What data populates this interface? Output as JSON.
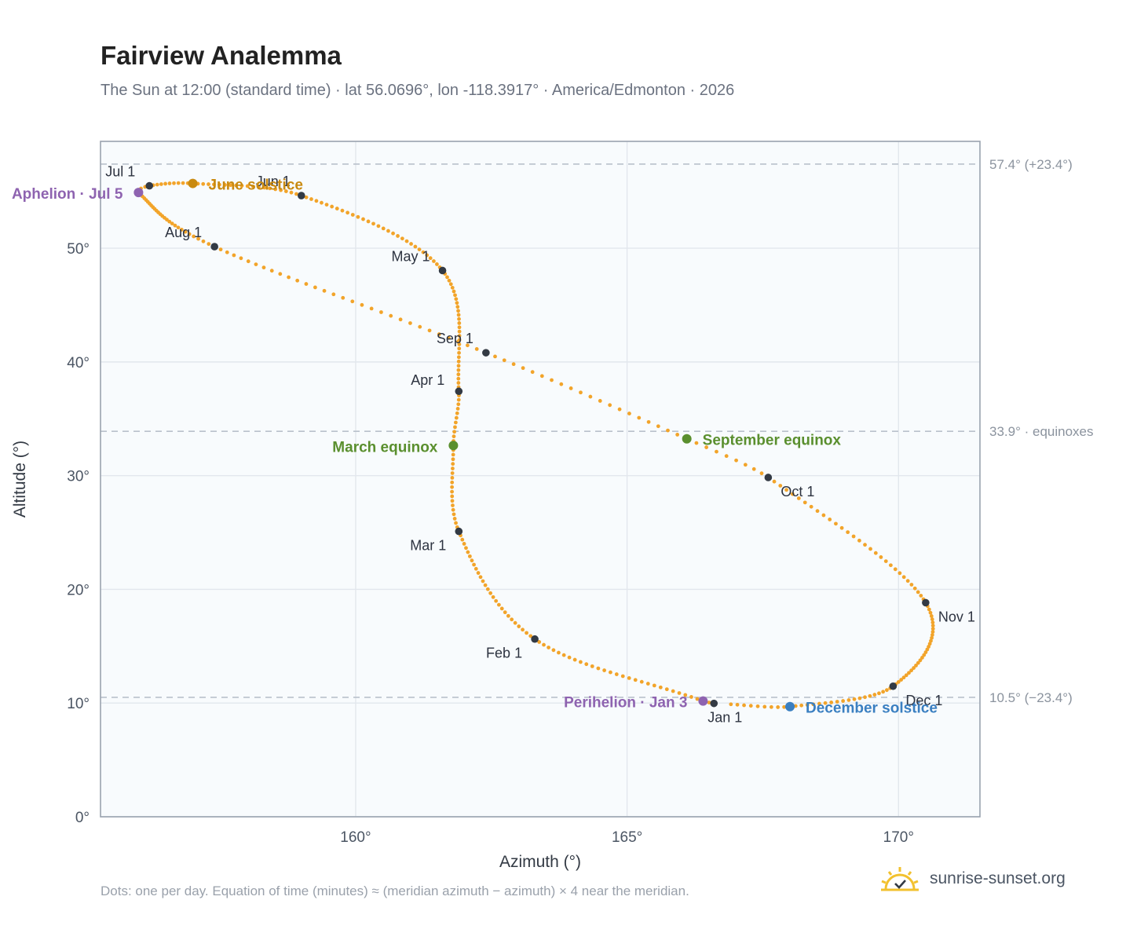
{
  "title": "Fairview Analemma",
  "subtitle": "The Sun at 12:00 (standard time) · lat 56.0696°, lon -118.3917° · America/Edmonton · 2026",
  "footnote": "Dots: one per day. Equation of time (minutes) ≈ (meridian azimuth − azimuth) × 4 near the meridian.",
  "brand": {
    "name": "sunrise-sunset.org",
    "icon": "sun-checkmark-logo-icon"
  },
  "colors": {
    "curve": "#f2a42a",
    "month_marker": "#333a44",
    "solstice_june": "#c98a10",
    "solstice_december": "#3a7fc1",
    "equinox": "#5a8f2e",
    "apsis": "#8e63b0",
    "reference_line": "#b9c1cc",
    "plot_background": "#f8fbfd"
  },
  "chart_data": {
    "type": "scatter",
    "xlabel": "Azimuth (°)",
    "ylabel": "Altitude (°)",
    "xlim": [
      155.3,
      171.5
    ],
    "ylim": [
      0,
      59.4
    ],
    "x_ticks": [
      160,
      165,
      170
    ],
    "x_tick_labels": [
      "160°",
      "165°",
      "170°"
    ],
    "y_ticks": [
      0,
      10,
      20,
      30,
      40,
      50
    ],
    "y_tick_labels": [
      "0°",
      "10°",
      "20°",
      "30°",
      "40°",
      "50°"
    ],
    "grid": true,
    "series": [
      {
        "name": "Daily sun position",
        "marker": "dot-per-day",
        "anchors": [
          {
            "date": "2026-01-01",
            "azimuth": 166.6,
            "altitude": 9.97
          },
          {
            "date": "2026-01-03",
            "azimuth": 166.4,
            "altitude": 10.18
          },
          {
            "date": "2026-02-01",
            "azimuth": 163.3,
            "altitude": 15.63
          },
          {
            "date": "2026-03-01",
            "azimuth": 161.9,
            "altitude": 25.1
          },
          {
            "date": "2026-03-20",
            "azimuth": 161.8,
            "altitude": 32.65
          },
          {
            "date": "2026-04-01",
            "azimuth": 161.9,
            "altitude": 37.42
          },
          {
            "date": "2026-05-01",
            "azimuth": 161.6,
            "altitude": 48.04
          },
          {
            "date": "2026-06-01",
            "azimuth": 159.0,
            "altitude": 54.63
          },
          {
            "date": "2026-06-21",
            "azimuth": 157.0,
            "altitude": 55.7
          },
          {
            "date": "2026-07-01",
            "azimuth": 156.2,
            "altitude": 55.49
          },
          {
            "date": "2026-07-05",
            "azimuth": 156.0,
            "altitude": 54.9
          },
          {
            "date": "2026-08-01",
            "azimuth": 157.4,
            "altitude": 50.14
          },
          {
            "date": "2026-09-01",
            "azimuth": 162.4,
            "altitude": 40.81
          },
          {
            "date": "2026-09-22",
            "azimuth": 166.1,
            "altitude": 33.24
          },
          {
            "date": "2026-10-01",
            "azimuth": 167.6,
            "altitude": 29.84
          },
          {
            "date": "2026-11-01",
            "azimuth": 170.5,
            "altitude": 18.83
          },
          {
            "date": "2026-12-01",
            "azimuth": 169.9,
            "altitude": 11.48
          },
          {
            "date": "2026-12-21",
            "azimuth": 168.0,
            "altitude": 9.69
          },
          {
            "date": "2026-12-31",
            "azimuth": 166.8,
            "altitude": 9.92
          }
        ]
      }
    ],
    "month_markers": [
      {
        "label": "Jan 1",
        "azimuth": 166.6,
        "altitude": 9.97
      },
      {
        "label": "Feb 1",
        "azimuth": 163.3,
        "altitude": 15.63
      },
      {
        "label": "Mar 1",
        "azimuth": 161.9,
        "altitude": 25.1
      },
      {
        "label": "Apr 1",
        "azimuth": 161.9,
        "altitude": 37.42
      },
      {
        "label": "May 1",
        "azimuth": 161.6,
        "altitude": 48.04
      },
      {
        "label": "Jun 1",
        "azimuth": 159.0,
        "altitude": 54.63
      },
      {
        "label": "Jul 1",
        "azimuth": 156.2,
        "altitude": 55.49
      },
      {
        "label": "Aug 1",
        "azimuth": 157.4,
        "altitude": 50.14
      },
      {
        "label": "Sep 1",
        "azimuth": 162.4,
        "altitude": 40.81
      },
      {
        "label": "Oct 1",
        "azimuth": 167.6,
        "altitude": 29.84
      },
      {
        "label": "Nov 1",
        "azimuth": 170.5,
        "altitude": 18.83
      },
      {
        "label": "Dec 1",
        "azimuth": 169.9,
        "altitude": 11.48
      }
    ],
    "events": [
      {
        "label": "June solstice",
        "azimuth": 157.0,
        "altitude": 55.7,
        "color": "#c98a10"
      },
      {
        "label": "December solstice",
        "azimuth": 168.0,
        "altitude": 9.69,
        "color": "#3a7fc1"
      },
      {
        "label": "March equinox",
        "azimuth": 161.8,
        "altitude": 32.65,
        "color": "#5a8f2e"
      },
      {
        "label": "September equinox",
        "azimuth": 166.1,
        "altitude": 33.24,
        "color": "#5a8f2e"
      },
      {
        "label": "Aphelion · Jul 5",
        "azimuth": 156.0,
        "altitude": 54.9,
        "color": "#8e63b0"
      },
      {
        "label": "Perihelion · Jan 3",
        "azimuth": 166.4,
        "altitude": 10.18,
        "color": "#8e63b0"
      }
    ],
    "reference_lines": [
      {
        "altitude": 57.4,
        "label": "57.4° (+23.4°)"
      },
      {
        "altitude": 33.9,
        "label": "33.9° · equinoxes"
      },
      {
        "altitude": 10.5,
        "label": "10.5° (−23.4°)"
      }
    ]
  }
}
